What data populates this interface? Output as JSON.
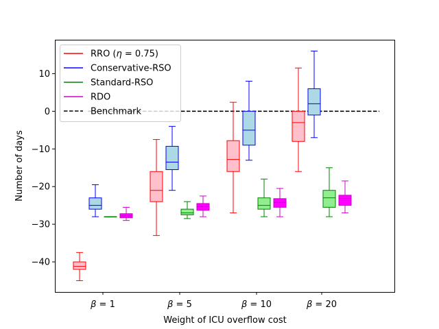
{
  "chart_data": {
    "type": "box",
    "xlabel": "Weight of ICU overflow cost",
    "ylabel": "Number of days",
    "ylim": [
      -48,
      19
    ],
    "yticks": [
      10,
      0,
      -10,
      -20,
      -30,
      -40
    ],
    "ytick_labels": [
      "10",
      "0",
      "−10",
      "−20",
      "−30",
      "−40"
    ],
    "groups": [
      {
        "label_prefix": "β",
        "label_op": " = ",
        "label_value": "1"
      },
      {
        "label_prefix": "β",
        "label_op": " = ",
        "label_value": "5"
      },
      {
        "label_prefix": "β",
        "label_op": " = ",
        "label_value": "10"
      },
      {
        "label_prefix": "β",
        "label_op": " = ",
        "label_value": "20"
      }
    ],
    "series": [
      {
        "name": "RRO",
        "legend_main": "RRO (",
        "legend_symbol": "η",
        "legend_eq": " = 0.75)",
        "edge": "#ff0000",
        "fill": "#ffc0cb",
        "boxes": [
          {
            "whislo": -45,
            "q1": -42,
            "med": -41.2,
            "q3": -40,
            "whishi": -37.5
          },
          {
            "whislo": -33,
            "q1": -24,
            "med": -21,
            "q3": -16,
            "whishi": -7.5
          },
          {
            "whislo": -27,
            "q1": -16,
            "med": -12.8,
            "q3": -7.8,
            "whishi": 2.4
          },
          {
            "whislo": -16,
            "q1": -8,
            "med": -3,
            "q3": 0,
            "whishi": 11.5
          }
        ]
      },
      {
        "name": "Conservative-RSO",
        "legend_main": "Conservative-RSO",
        "edge": "#0000ff",
        "fill": "#add8e6",
        "boxes": [
          {
            "whislo": -28,
            "q1": -26,
            "med": -25,
            "q3": -23,
            "whishi": -19.5
          },
          {
            "whislo": -21,
            "q1": -15.5,
            "med": -13.5,
            "q3": -9.3,
            "whishi": -4
          },
          {
            "whislo": -13,
            "q1": -9,
            "med": -5,
            "q3": 0,
            "whishi": 8
          },
          {
            "whislo": -7,
            "q1": -1,
            "med": 2,
            "q3": 6,
            "whishi": 16
          }
        ]
      },
      {
        "name": "Standard-RSO",
        "legend_main": "Standard-RSO",
        "edge": "#008000",
        "fill": "#90ee90",
        "boxes": [
          {
            "whislo": -28,
            "q1": -28,
            "med": -28,
            "q3": -28,
            "whishi": -28
          },
          {
            "whislo": -28.5,
            "q1": -27.5,
            "med": -27,
            "q3": -26,
            "whishi": -24
          },
          {
            "whislo": -28,
            "q1": -26,
            "med": -25,
            "q3": -23,
            "whishi": -18
          },
          {
            "whislo": -28,
            "q1": -25.5,
            "med": -23,
            "q3": -21,
            "whishi": -15
          }
        ]
      },
      {
        "name": "RDO",
        "legend_main": "RDO",
        "edge": "#cc00cc",
        "fill": "#ff00ff",
        "boxes": [
          {
            "whislo": -29,
            "q1": -28.3,
            "med": -27.8,
            "q3": -27.2,
            "whishi": -25.5
          },
          {
            "whislo": -28,
            "q1": -26.3,
            "med": -25.3,
            "q3": -24.5,
            "whishi": -22.5
          },
          {
            "whislo": -28,
            "q1": -25.5,
            "med": -24.2,
            "q3": -23.2,
            "whishi": -20.5
          },
          {
            "whislo": -27,
            "q1": -25,
            "med": -23.2,
            "q3": -22.3,
            "whishi": -18.5
          }
        ]
      }
    ],
    "benchmark": {
      "name": "Benchmark",
      "legend_main": "Benchmark",
      "value": 0,
      "color": "#000000"
    },
    "legend": "top-left"
  }
}
